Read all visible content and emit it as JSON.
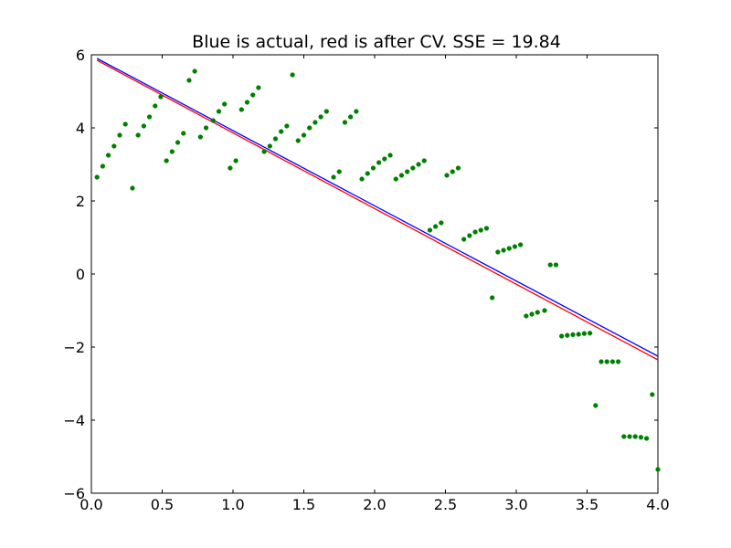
{
  "chart_data": {
    "type": "scatter",
    "title": "Blue is actual, red is after CV. SSE = 19.84",
    "xlabel": "",
    "ylabel": "",
    "xlim": [
      0.0,
      4.0
    ],
    "ylim": [
      -6,
      6
    ],
    "grid": false,
    "x_ticks": [
      0.0,
      0.5,
      1.0,
      1.5,
      2.0,
      2.5,
      3.0,
      3.5,
      4.0
    ],
    "x_tick_labels": [
      "0.0",
      "0.5",
      "1.0",
      "1.5",
      "2.0",
      "2.5",
      "3.0",
      "3.5",
      "4.0"
    ],
    "y_ticks": [
      -6,
      -4,
      -2,
      0,
      2,
      4,
      6
    ],
    "y_tick_labels": [
      "−6",
      "−4",
      "−2",
      "0",
      "2",
      "4",
      "6"
    ],
    "colors": {
      "points": "#008000",
      "actual_line": "#0000ff",
      "cv_line": "#ff0000"
    },
    "lines": [
      {
        "name": "actual",
        "color": "#0000ff",
        "x": [
          0.04,
          4.0
        ],
        "y": [
          5.9,
          -2.25
        ]
      },
      {
        "name": "CV",
        "color": "#ff0000",
        "x": [
          0.04,
          4.0
        ],
        "y": [
          5.85,
          -2.35
        ]
      }
    ],
    "points": [
      {
        "x": 0.04,
        "y": 2.65
      },
      {
        "x": 0.08,
        "y": 2.95
      },
      {
        "x": 0.12,
        "y": 3.25
      },
      {
        "x": 0.16,
        "y": 3.5
      },
      {
        "x": 0.2,
        "y": 3.8
      },
      {
        "x": 0.24,
        "y": 4.1
      },
      {
        "x": 0.29,
        "y": 2.35
      },
      {
        "x": 0.33,
        "y": 3.8
      },
      {
        "x": 0.37,
        "y": 4.05
      },
      {
        "x": 0.41,
        "y": 4.3
      },
      {
        "x": 0.45,
        "y": 4.6
      },
      {
        "x": 0.49,
        "y": 4.85
      },
      {
        "x": 0.53,
        "y": 3.1
      },
      {
        "x": 0.57,
        "y": 3.35
      },
      {
        "x": 0.61,
        "y": 3.6
      },
      {
        "x": 0.65,
        "y": 3.85
      },
      {
        "x": 0.69,
        "y": 5.3
      },
      {
        "x": 0.73,
        "y": 5.55
      },
      {
        "x": 0.77,
        "y": 3.75
      },
      {
        "x": 0.81,
        "y": 4.0
      },
      {
        "x": 0.86,
        "y": 4.2
      },
      {
        "x": 0.9,
        "y": 4.45
      },
      {
        "x": 0.94,
        "y": 4.65
      },
      {
        "x": 0.98,
        "y": 2.9
      },
      {
        "x": 1.02,
        "y": 3.1
      },
      {
        "x": 1.06,
        "y": 4.5
      },
      {
        "x": 1.1,
        "y": 4.7
      },
      {
        "x": 1.14,
        "y": 4.9
      },
      {
        "x": 1.18,
        "y": 5.1
      },
      {
        "x": 1.22,
        "y": 3.35
      },
      {
        "x": 1.26,
        "y": 3.5
      },
      {
        "x": 1.3,
        "y": 3.7
      },
      {
        "x": 1.34,
        "y": 3.9
      },
      {
        "x": 1.38,
        "y": 4.05
      },
      {
        "x": 1.42,
        "y": 5.45
      },
      {
        "x": 1.46,
        "y": 3.65
      },
      {
        "x": 1.5,
        "y": 3.8
      },
      {
        "x": 1.54,
        "y": 4.0
      },
      {
        "x": 1.58,
        "y": 4.15
      },
      {
        "x": 1.62,
        "y": 4.3
      },
      {
        "x": 1.66,
        "y": 4.45
      },
      {
        "x": 1.71,
        "y": 2.65
      },
      {
        "x": 1.75,
        "y": 2.8
      },
      {
        "x": 1.79,
        "y": 4.15
      },
      {
        "x": 1.83,
        "y": 4.3
      },
      {
        "x": 1.87,
        "y": 4.45
      },
      {
        "x": 1.91,
        "y": 2.6
      },
      {
        "x": 1.95,
        "y": 2.75
      },
      {
        "x": 1.99,
        "y": 2.9
      },
      {
        "x": 2.03,
        "y": 3.05
      },
      {
        "x": 2.07,
        "y": 3.15
      },
      {
        "x": 2.11,
        "y": 3.25
      },
      {
        "x": 2.15,
        "y": 2.6
      },
      {
        "x": 2.19,
        "y": 2.7
      },
      {
        "x": 2.23,
        "y": 2.8
      },
      {
        "x": 2.27,
        "y": 2.9
      },
      {
        "x": 2.31,
        "y": 3.0
      },
      {
        "x": 2.35,
        "y": 3.1
      },
      {
        "x": 2.39,
        "y": 1.2
      },
      {
        "x": 2.43,
        "y": 1.3
      },
      {
        "x": 2.47,
        "y": 1.4
      },
      {
        "x": 2.51,
        "y": 2.7
      },
      {
        "x": 2.55,
        "y": 2.8
      },
      {
        "x": 2.59,
        "y": 2.9
      },
      {
        "x": 2.63,
        "y": 0.95
      },
      {
        "x": 2.67,
        "y": 1.05
      },
      {
        "x": 2.71,
        "y": 1.15
      },
      {
        "x": 2.75,
        "y": 1.2
      },
      {
        "x": 2.79,
        "y": 1.25
      },
      {
        "x": 2.83,
        "y": -0.65
      },
      {
        "x": 2.87,
        "y": 0.6
      },
      {
        "x": 2.91,
        "y": 0.65
      },
      {
        "x": 2.95,
        "y": 0.7
      },
      {
        "x": 2.99,
        "y": 0.75
      },
      {
        "x": 3.03,
        "y": 0.8
      },
      {
        "x": 3.07,
        "y": -1.15
      },
      {
        "x": 3.11,
        "y": -1.1
      },
      {
        "x": 3.15,
        "y": -1.05
      },
      {
        "x": 3.2,
        "y": -1.0
      },
      {
        "x": 3.24,
        "y": 0.25
      },
      {
        "x": 3.28,
        "y": 0.25
      },
      {
        "x": 3.32,
        "y": -1.7
      },
      {
        "x": 3.36,
        "y": -1.68
      },
      {
        "x": 3.4,
        "y": -1.66
      },
      {
        "x": 3.44,
        "y": -1.65
      },
      {
        "x": 3.48,
        "y": -1.63
      },
      {
        "x": 3.52,
        "y": -1.62
      },
      {
        "x": 3.56,
        "y": -3.6
      },
      {
        "x": 3.6,
        "y": -2.4
      },
      {
        "x": 3.64,
        "y": -2.4
      },
      {
        "x": 3.68,
        "y": -2.4
      },
      {
        "x": 3.72,
        "y": -2.4
      },
      {
        "x": 3.76,
        "y": -4.45
      },
      {
        "x": 3.8,
        "y": -4.45
      },
      {
        "x": 3.84,
        "y": -4.45
      },
      {
        "x": 3.88,
        "y": -4.47
      },
      {
        "x": 3.92,
        "y": -4.5
      },
      {
        "x": 3.96,
        "y": -3.3
      },
      {
        "x": 4.0,
        "y": -5.35
      }
    ]
  }
}
